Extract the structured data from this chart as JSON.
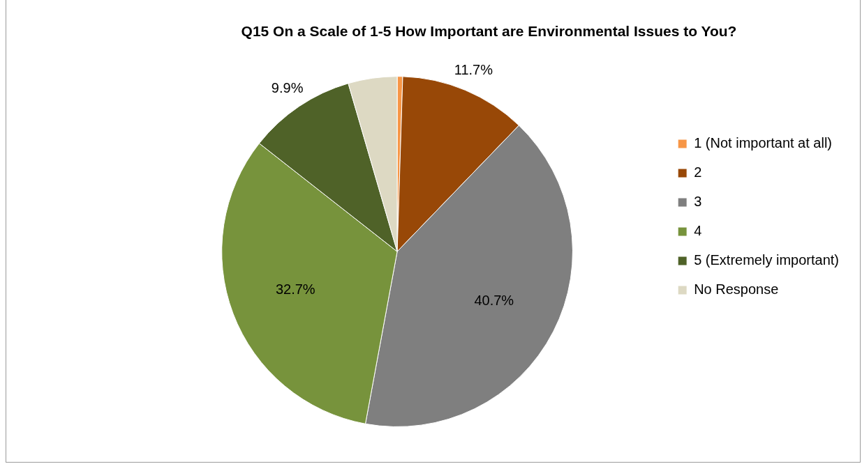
{
  "chart_data": {
    "type": "pie",
    "title": "Q15 On a Scale of 1-5 How Important are Environmental Issues to You?",
    "categories": [
      "1 (Not important at all)",
      "2",
      "3",
      "4",
      "5 (Extremely important)",
      "No Response"
    ],
    "values": [
      0.5,
      11.7,
      40.7,
      32.7,
      9.9,
      4.5
    ],
    "colors": [
      "#f79646",
      "#984807",
      "#7f7f7f",
      "#77933c",
      "#4f6228",
      "#ddd9c3"
    ],
    "value_labels": [
      null,
      "11.7%",
      "40.7%",
      "32.7%",
      "9.9%",
      null
    ],
    "legend": "right"
  }
}
